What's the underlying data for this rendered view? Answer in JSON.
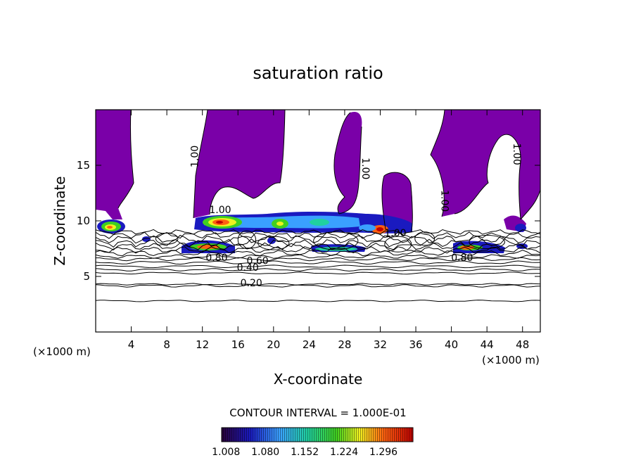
{
  "chart_data": {
    "type": "heatmap",
    "title": "saturation ratio",
    "xlabel": "X-coordinate",
    "ylabel": "Z-coordinate",
    "x_unit_left": "(×1000 m)",
    "x_unit_right": "(×1000 m)",
    "xlim": [
      0,
      50
    ],
    "ylim": [
      0,
      20
    ],
    "x_ticks": [
      4,
      8,
      12,
      16,
      20,
      24,
      28,
      32,
      36,
      40,
      44,
      48
    ],
    "y_ticks": [
      5,
      10,
      15
    ],
    "contour_interval_text": "CONTOUR INTERVAL = 1.000E-01",
    "contour_labels": [
      {
        "text": "1.00",
        "x": 11.5,
        "z": 15.8,
        "rot": -90
      },
      {
        "text": "1.00",
        "x": 30.0,
        "z": 14.7,
        "rot": 90
      },
      {
        "text": "1.00",
        "x": 47.0,
        "z": 16.0,
        "rot": 90
      },
      {
        "text": "1.00",
        "x": 38.9,
        "z": 11.8,
        "rot": 90
      },
      {
        "text": "1.00",
        "x": 14.0,
        "z": 10.7,
        "rot": 0
      },
      {
        "text": "1.00",
        "x": 33.7,
        "z": 8.6,
        "rot": 0
      },
      {
        "text": "0.80",
        "x": 13.6,
        "z": 6.4,
        "rot": 0
      },
      {
        "text": "0.80",
        "x": 41.2,
        "z": 6.4,
        "rot": 0
      },
      {
        "text": "0.60",
        "x": 18.2,
        "z": 6.1,
        "rot": 0
      },
      {
        "text": "0.40",
        "x": 17.1,
        "z": 5.5,
        "rot": 0
      },
      {
        "text": "0.20",
        "x": 17.5,
        "z": 4.1,
        "rot": 0
      }
    ],
    "colorbar": {
      "ticks": [
        "1.008",
        "1.080",
        "1.152",
        "1.224",
        "1.296"
      ],
      "min": 1.0,
      "max": 1.35
    },
    "supersaturated_fill_color": "#7a00a8"
  }
}
